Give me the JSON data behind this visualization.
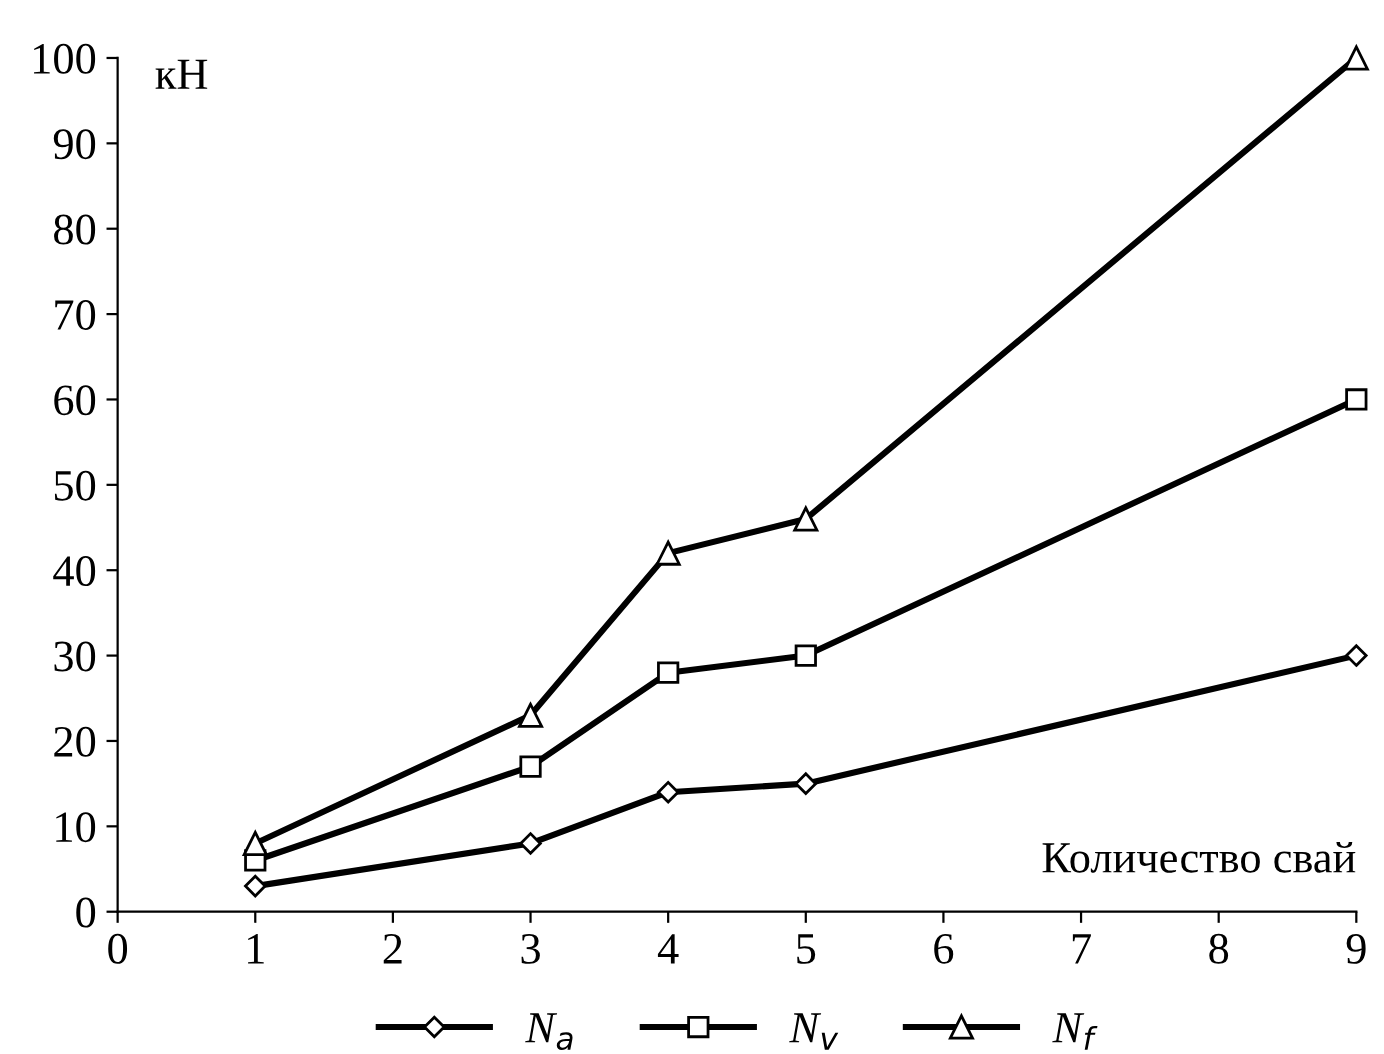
{
  "chart_data": {
    "type": "line",
    "ylabel": "кН",
    "xlabel": "Количество свай",
    "x": [
      1,
      3,
      4,
      5,
      9
    ],
    "series": [
      {
        "name": "N$_{a}$",
        "color": "#000000",
        "marker": "diamond",
        "values": [
          3,
          8,
          14,
          15,
          30
        ]
      },
      {
        "name": "N$_{v}$",
        "color": "#000000",
        "marker": "square",
        "values": [
          6,
          17,
          28,
          30,
          60
        ]
      },
      {
        "name": "N$_{f}$",
        "color": "#000000",
        "marker": "triangle",
        "values": [
          8,
          23,
          42,
          46,
          100
        ]
      }
    ],
    "xlim": [
      0,
      9
    ],
    "xticks": [
      0,
      1,
      2,
      3,
      4,
      5,
      6,
      7,
      8,
      9
    ],
    "ylim": [
      0,
      100
    ],
    "yticks": [
      0,
      10,
      20,
      30,
      40,
      50,
      60,
      70,
      80,
      90,
      100
    ],
    "grid": false,
    "legend": "bottom",
    "line_style": "solid"
  }
}
